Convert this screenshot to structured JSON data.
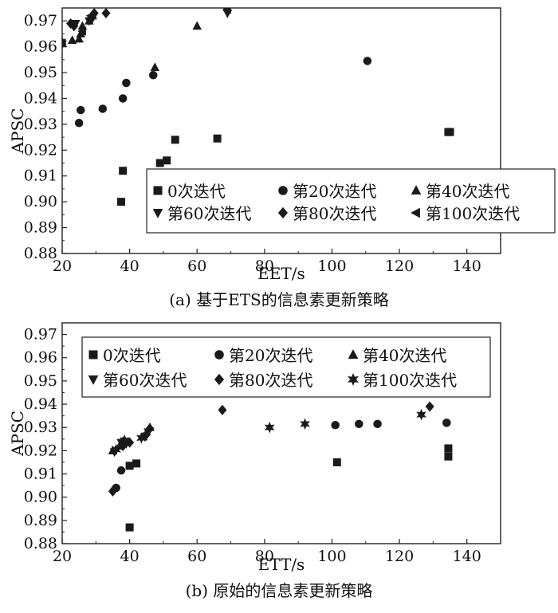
{
  "chart_data": [
    {
      "type": "scatter",
      "caption": "(a) 基于ETS的信息素更新策略",
      "xlabel": "EET/s",
      "ylabel": "APSC",
      "xlim": [
        20,
        150
      ],
      "ylim": [
        0.88,
        0.975
      ],
      "xticks": [
        20,
        40,
        60,
        80,
        100,
        120,
        140
      ],
      "yticks": [
        0.88,
        0.89,
        0.9,
        0.91,
        0.92,
        0.93,
        0.94,
        0.95,
        0.96,
        0.97
      ],
      "ytick_labels": [
        "0.88",
        "0.89",
        "0.90",
        "0.91",
        "0.92",
        "0.93",
        "0.94",
        "0.95",
        "0.96",
        "0.97"
      ],
      "legend_position": "lower-right",
      "series": [
        {
          "name": "0次迭代",
          "marker": "square",
          "points": [
            [
              37.5,
              0.9
            ],
            [
              38,
              0.912
            ],
            [
              49,
              0.915
            ],
            [
              51,
              0.916
            ],
            [
              53.5,
              0.924
            ],
            [
              66,
              0.9245
            ],
            [
              134.5,
              0.927
            ],
            [
              135,
              0.927
            ]
          ]
        },
        {
          "name": "第20次迭代",
          "marker": "circle",
          "points": [
            [
              25,
              0.9305
            ],
            [
              25.5,
              0.9355
            ],
            [
              32,
              0.936
            ],
            [
              38,
              0.94
            ],
            [
              39,
              0.946
            ],
            [
              47,
              0.949
            ],
            [
              110.5,
              0.9545
            ]
          ]
        },
        {
          "name": "第40次迭代",
          "marker": "triangle-up",
          "points": [
            [
              20,
              0.962
            ],
            [
              23,
              0.9625
            ],
            [
              25,
              0.963
            ],
            [
              25.5,
              0.965
            ],
            [
              26,
              0.968
            ],
            [
              28,
              0.97
            ],
            [
              29,
              0.972
            ],
            [
              47.5,
              0.952
            ],
            [
              60,
              0.968
            ]
          ]
        },
        {
          "name": "第60次迭代",
          "marker": "triangle-down",
          "points": [
            [
              20,
              0.961
            ],
            [
              24,
              0.969
            ],
            [
              28,
              0.97
            ],
            [
              29,
              0.971
            ],
            [
              69,
              0.973
            ]
          ]
        },
        {
          "name": "第80次迭代",
          "marker": "diamond",
          "points": [
            [
              22.5,
              0.969
            ],
            [
              23.5,
              0.968
            ],
            [
              28.5,
              0.971
            ],
            [
              29.5,
              0.973
            ],
            [
              33,
              0.973
            ],
            [
              69,
              0.974
            ]
          ]
        },
        {
          "name": "第100次迭代",
          "marker": "triangle-left",
          "points": [
            [
              20,
              0.9615
            ],
            [
              26,
              0.966
            ],
            [
              28.5,
              0.972
            ],
            [
              69,
              0.9745
            ]
          ]
        }
      ]
    },
    {
      "type": "scatter",
      "caption": "(b) 原始的信息素更新策略",
      "xlabel": "ETT/s",
      "ylabel": "APSC",
      "xlim": [
        20,
        150
      ],
      "ylim": [
        0.88,
        0.975
      ],
      "xticks": [
        20,
        40,
        60,
        80,
        100,
        120,
        140
      ],
      "yticks": [
        0.88,
        0.89,
        0.9,
        0.91,
        0.92,
        0.93,
        0.94,
        0.95,
        0.96,
        0.97
      ],
      "ytick_labels": [
        "0.88",
        "0.89",
        "0.90",
        "0.91",
        "0.92",
        "0.93",
        "0.94",
        "0.95",
        "0.96",
        "0.97"
      ],
      "legend_position": "top",
      "series": [
        {
          "name": "0次迭代",
          "marker": "square",
          "points": [
            [
              40,
              0.887
            ],
            [
              40,
              0.9135
            ],
            [
              42,
              0.9145
            ],
            [
              101.5,
              0.915
            ],
            [
              134.5,
              0.9175
            ],
            [
              134.5,
              0.921
            ]
          ]
        },
        {
          "name": "第20次迭代",
          "marker": "circle",
          "points": [
            [
              36,
              0.904
            ],
            [
              37.5,
              0.9115
            ],
            [
              101,
              0.931
            ],
            [
              108,
              0.9315
            ],
            [
              113.5,
              0.9315
            ],
            [
              134,
              0.932
            ]
          ]
        },
        {
          "name": "第40次迭代",
          "marker": "triangle-up",
          "points": [
            [
              35,
              0.92
            ],
            [
              37,
              0.922
            ],
            [
              38,
              0.924
            ],
            [
              44,
              0.926
            ],
            [
              46,
              0.93
            ]
          ]
        },
        {
          "name": "第60次迭代",
          "marker": "triangle-down",
          "points": [
            [
              35.5,
              0.9195
            ],
            [
              37.5,
              0.9235
            ],
            [
              39,
              0.923
            ],
            [
              44.5,
              0.926
            ],
            [
              45.5,
              0.928
            ]
          ]
        },
        {
          "name": "第80次迭代",
          "marker": "diamond",
          "points": [
            [
              35,
              0.9025
            ],
            [
              35.5,
              0.9035
            ],
            [
              38,
              0.922
            ],
            [
              40,
              0.9235
            ],
            [
              45,
              0.927
            ],
            [
              46,
              0.9295
            ],
            [
              67.5,
              0.9375
            ],
            [
              129,
              0.939
            ]
          ]
        },
        {
          "name": "第100次迭代",
          "marker": "star",
          "points": [
            [
              36,
              0.9205
            ],
            [
              38.5,
              0.9245
            ],
            [
              43.5,
              0.9255
            ],
            [
              81.5,
              0.93
            ],
            [
              92,
              0.9315
            ],
            [
              126.5,
              0.9355
            ]
          ]
        }
      ]
    }
  ]
}
